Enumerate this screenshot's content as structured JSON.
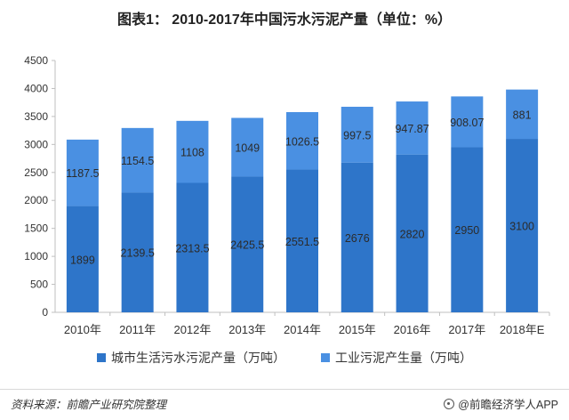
{
  "title": "图表1： 2010-2017年中国污水污泥产量（单位：%）",
  "source": "资料来源：前瞻产业研究院整理",
  "brand": "@前瞻经济学人APP",
  "colors": {
    "series1": "#2E75C9",
    "series2": "#4A90E2"
  },
  "chart_data": {
    "type": "bar",
    "stacked": true,
    "categories": [
      "2010年",
      "2011年",
      "2012年",
      "2013年",
      "2014年",
      "2015年",
      "2016年",
      "2017年",
      "2018年E"
    ],
    "series": [
      {
        "name": "城市生活污水污泥产量（万吨）",
        "values": [
          1899,
          2139.5,
          2313.5,
          2425.5,
          2551.5,
          2676,
          2820,
          2950,
          3100
        ]
      },
      {
        "name": "工业污泥产生量（万吨）",
        "values": [
          1187.5,
          1154.5,
          1108,
          1049,
          1026.5,
          997.5,
          947.87,
          908.07,
          881
        ]
      }
    ],
    "value_labels": [
      [
        "1899",
        "2139.5",
        "2313.5",
        "2425.5",
        "2551.5",
        "2676",
        "2820",
        "2950",
        "3100"
      ],
      [
        "1187.5",
        "1154.5",
        "1108",
        "1049",
        "1026.5",
        "997.5",
        "947.87",
        "908.07",
        "881"
      ]
    ],
    "ylim": [
      0,
      4500
    ],
    "yticks": [
      0,
      500,
      1000,
      1500,
      2000,
      2500,
      3000,
      3500,
      4000,
      4500
    ],
    "grid": false,
    "legend_position": "bottom"
  }
}
